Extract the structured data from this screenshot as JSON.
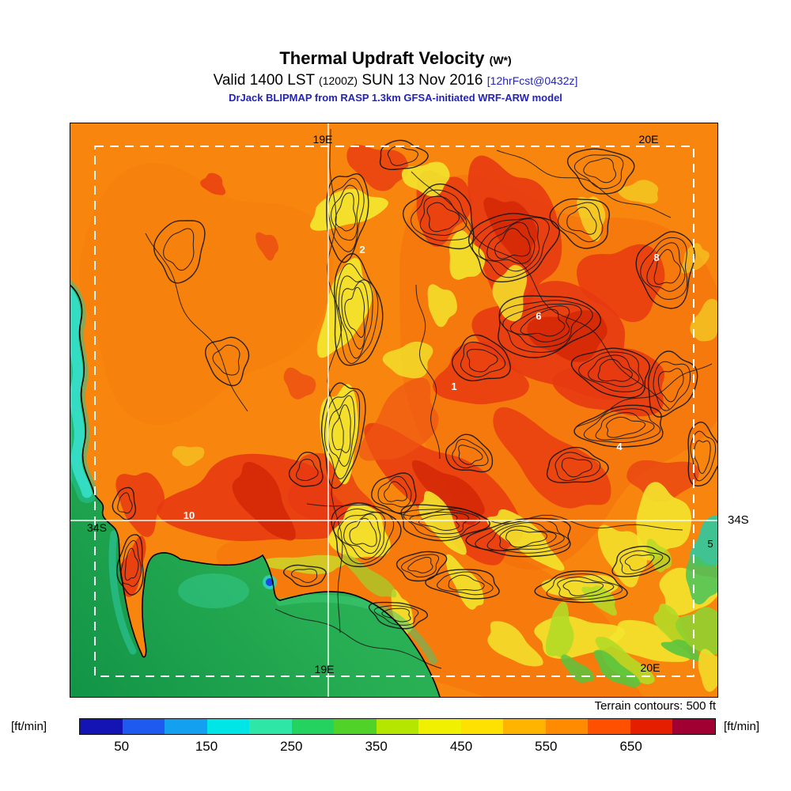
{
  "header": {
    "title": "Thermal Updraft Velocity",
    "title_suffix": "(W*)",
    "valid_prefix": "Valid 1400 LST",
    "valid_zulu": "(1200Z)",
    "valid_date": "SUN 13 Nov 2016",
    "valid_fcst": "[12hrFcst@0432z]",
    "model_line": "DrJack BLIPMAP from RASP 1.3km GFSA-initiated WRF-ARW model",
    "accent_blue": "#2323bd"
  },
  "map": {
    "grid_labels": {
      "lon_19e_top": "19E",
      "lon_20e_top": "20E",
      "lon_19e_bottom": "19E",
      "lon_20e_bottom": "20E",
      "lat_34s_left": "34S",
      "lat_34s_right": "34S",
      "edge_5": "5"
    },
    "waypoints": [
      {
        "label": "2"
      },
      {
        "label": "8"
      },
      {
        "label": "6"
      },
      {
        "label": "1"
      },
      {
        "label": "4"
      },
      {
        "label": "10"
      }
    ],
    "palette": {
      "land_orange": "#f8860e",
      "hot_red": "#e83a12",
      "ridge_yellow": "#f3e42c",
      "ocean_green": "#28ad52",
      "coast_cyan": "#35ddc6"
    }
  },
  "footer": {
    "terrain_note": "Terrain contours: 500 ft",
    "unit_left": "[ft/min]",
    "unit_right": "[ft/min]",
    "colorbar": {
      "tick_labels": [
        "50",
        "150",
        "250",
        "350",
        "450",
        "550",
        "650"
      ],
      "segment_colors": [
        "#1414b4",
        "#1e5af0",
        "#14a0f0",
        "#00e6e6",
        "#2ee6a6",
        "#23d25f",
        "#50d228",
        "#b4e600",
        "#f0f000",
        "#ffe100",
        "#ffb400",
        "#ff8c00",
        "#ff5000",
        "#e61e00",
        "#a00032"
      ]
    }
  }
}
